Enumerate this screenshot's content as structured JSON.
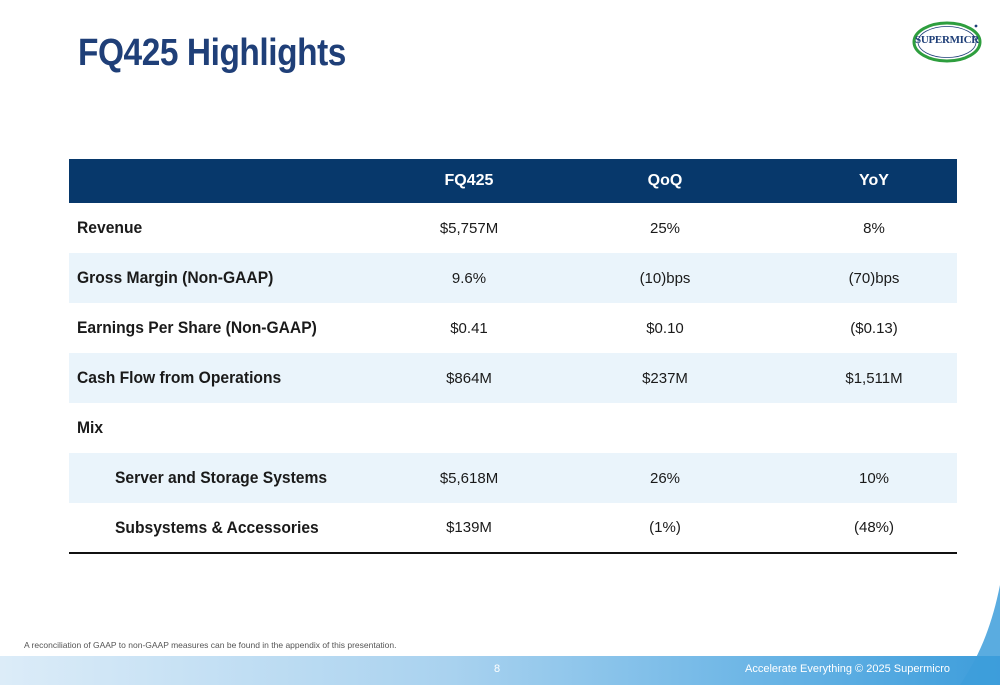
{
  "title": "FQ425 Highlights",
  "logo": {
    "text": "SUPERMICR",
    "brand_color": "#1f3f78",
    "ring_color": "#2e9e3e"
  },
  "table": {
    "headers": [
      "",
      "FQ425",
      "QoQ",
      "YoY"
    ],
    "rows": [
      {
        "label": "Revenue",
        "fq425": "$5,757M",
        "qoq": "25%",
        "yoy": "8%"
      },
      {
        "label": "Gross Margin (Non-GAAP)",
        "fq425": "9.6%",
        "qoq": "(10)bps",
        "yoy": "(70)bps"
      },
      {
        "label": "Earnings Per Share (Non-GAAP)",
        "fq425": "$0.41",
        "qoq": "$0.10",
        "yoy": "($0.13)"
      },
      {
        "label": "Cash Flow from Operations",
        "fq425": "$864M",
        "qoq": "$237M",
        "yoy": "$1,511M"
      },
      {
        "label": "Mix",
        "fq425": "",
        "qoq": "",
        "yoy": ""
      },
      {
        "label": "Server and Storage Systems",
        "fq425": "$5,618M",
        "qoq": "26%",
        "yoy": "10%"
      },
      {
        "label": "Subsystems & Accessories",
        "fq425": "$139M",
        "qoq": "(1%)",
        "yoy": "(48%)"
      }
    ],
    "header_color": "#07386b",
    "shade_color": "#eaf4fb"
  },
  "footnote": "A reconciliation of GAAP to non-GAAP measures can be found in the appendix of this presentation.",
  "footer": {
    "page_number": "8",
    "tagline": "Accelerate Everything © 2025 Supermicro"
  }
}
